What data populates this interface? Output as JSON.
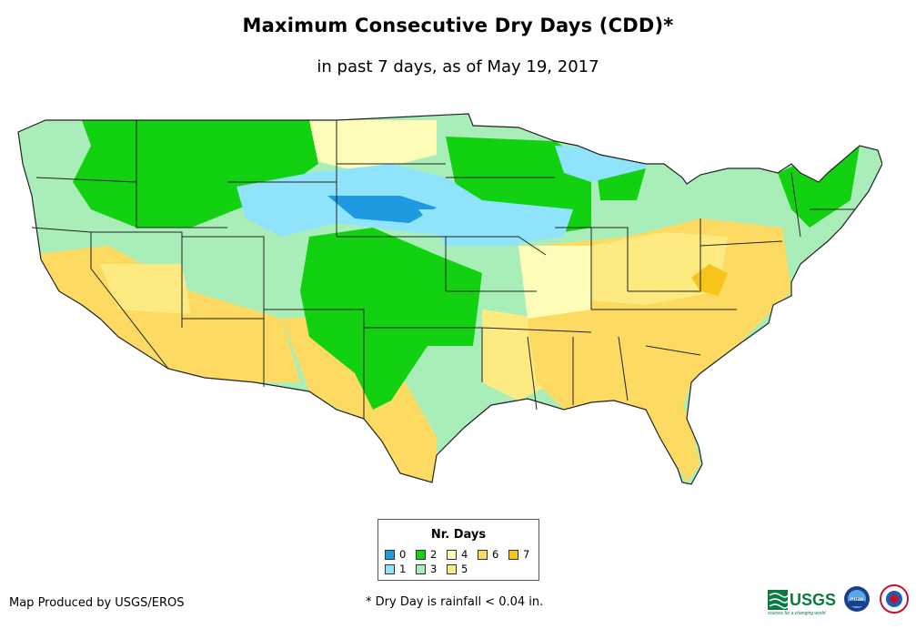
{
  "title": "Maximum Consecutive Dry Days (CDD)*",
  "subtitle": "in past 7 days, as of May 19, 2017",
  "legend": {
    "title": "Nr. Days",
    "items": [
      {
        "label": "0",
        "color": "#1e9ae0"
      },
      {
        "label": "1",
        "color": "#8fe3fb"
      },
      {
        "label": "2",
        "color": "#11d111"
      },
      {
        "label": "3",
        "color": "#a9eeb9"
      },
      {
        "label": "4",
        "color": "#fdfcb8"
      },
      {
        "label": "5",
        "color": "#fdeb82"
      },
      {
        "label": "6",
        "color": "#fddb62"
      },
      {
        "label": "7",
        "color": "#f7c51a"
      }
    ]
  },
  "credit": "Map Produced by USGS/EROS",
  "footnote": "* Dry Day is rainfall < 0.04 in.",
  "logos": {
    "usgs_text": "USGS",
    "usgs_tagline": "science for a changing world",
    "noaa_text": "noaa"
  },
  "colors": {
    "state_border": "#222222",
    "land": "#a9eeb9"
  }
}
